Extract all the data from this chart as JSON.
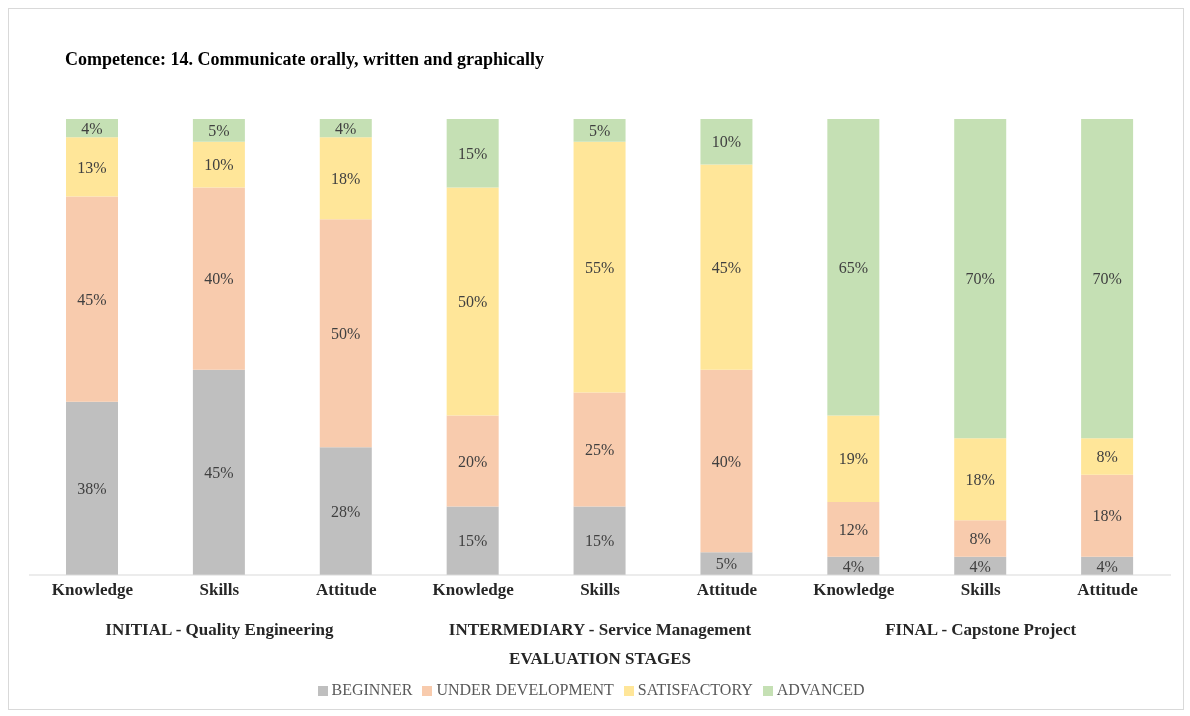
{
  "chart_data": {
    "type": "bar",
    "title": "Competence: 14. Communicate orally, written and graphically",
    "xlabel": "EVALUATION STAGES",
    "categories": [
      "Knowledge",
      "Skills",
      "Attitude",
      "Knowledge",
      "Skills",
      "Attitude",
      "Knowledge",
      "Skills",
      "Attitude"
    ],
    "annotations": [
      "INITIAL - Quality Engineering",
      "INTERMEDIARY - Service Management",
      "FINAL - Capstone Project"
    ],
    "stacked": true,
    "legend": "bottom",
    "grid": false,
    "series": [
      {
        "name": "BEGINNER",
        "color": "#bfbfbf",
        "values": [
          38,
          45,
          28,
          15,
          15,
          5,
          4,
          4,
          4
        ],
        "value_labels": [
          "38%",
          "45%",
          "28%",
          "15%",
          "15%",
          "5%",
          "4%",
          "4%",
          "4%"
        ]
      },
      {
        "name": "UNDER DEVELOPMENT",
        "color": "#f8cbad",
        "values": [
          45,
          40,
          50,
          20,
          25,
          40,
          12,
          8,
          18
        ],
        "value_labels": [
          "45%",
          "40%",
          "50%",
          "20%",
          "25%",
          "40%",
          "12%",
          "8%",
          "18%"
        ]
      },
      {
        "name": "SATISFACTORY",
        "color": "#ffe699",
        "values": [
          13,
          10,
          18,
          50,
          55,
          45,
          19,
          18,
          8
        ],
        "value_labels": [
          "13%",
          "10%",
          "18%",
          "50%",
          "55%",
          "45%",
          "19%",
          "18%",
          "8%"
        ]
      },
      {
        "name": "ADVANCED",
        "color": "#c5e0b4",
        "values": [
          4,
          5,
          4,
          15,
          5,
          10,
          65,
          70,
          70
        ],
        "value_labels": [
          "4%",
          "5%",
          "4%",
          "15%",
          "5%",
          "10%",
          "65%",
          "70%",
          "70%"
        ]
      }
    ]
  }
}
